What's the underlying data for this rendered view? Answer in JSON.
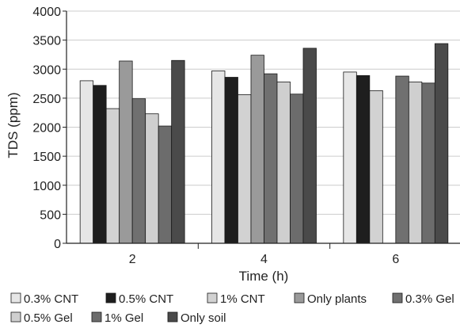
{
  "chart_data": {
    "type": "bar",
    "title": "",
    "xlabel": "Time (h)",
    "ylabel": "TDS (ppm)",
    "ylim": [
      0,
      4000
    ],
    "yticks": [
      "0",
      "500",
      "1000",
      "1500",
      "2000",
      "2500",
      "3000",
      "3500",
      "4000"
    ],
    "grid": "horizontal",
    "legend_position": "bottom",
    "categories": [
      "2",
      "4",
      "6"
    ],
    "series": [
      {
        "name": "0.3% CNT",
        "color": "#e6e6e6",
        "values": [
          2800,
          2970,
          2950
        ]
      },
      {
        "name": "0.5% CNT",
        "color": "#1e1e1e",
        "values": [
          2720,
          2860,
          2890
        ]
      },
      {
        "name": "1% CNT",
        "color": "#d2d2d2",
        "values": [
          2320,
          2560,
          2630
        ]
      },
      {
        "name": "Only plants",
        "color": "#9a9a9a",
        "values": [
          3140,
          3240,
          null
        ]
      },
      {
        "name": "0.3% Gel",
        "color": "#707070",
        "values": [
          2490,
          2920,
          2880
        ]
      },
      {
        "name": "0.5% Gel",
        "color": "#cfcfcf",
        "values": [
          2230,
          2780,
          2780
        ]
      },
      {
        "name": "1% Gel",
        "color": "#6c6c6c",
        "values": [
          2020,
          2570,
          2760
        ]
      },
      {
        "name": "Only soil",
        "color": "#4a4a4a",
        "values": [
          3150,
          3360,
          3440
        ]
      }
    ]
  }
}
